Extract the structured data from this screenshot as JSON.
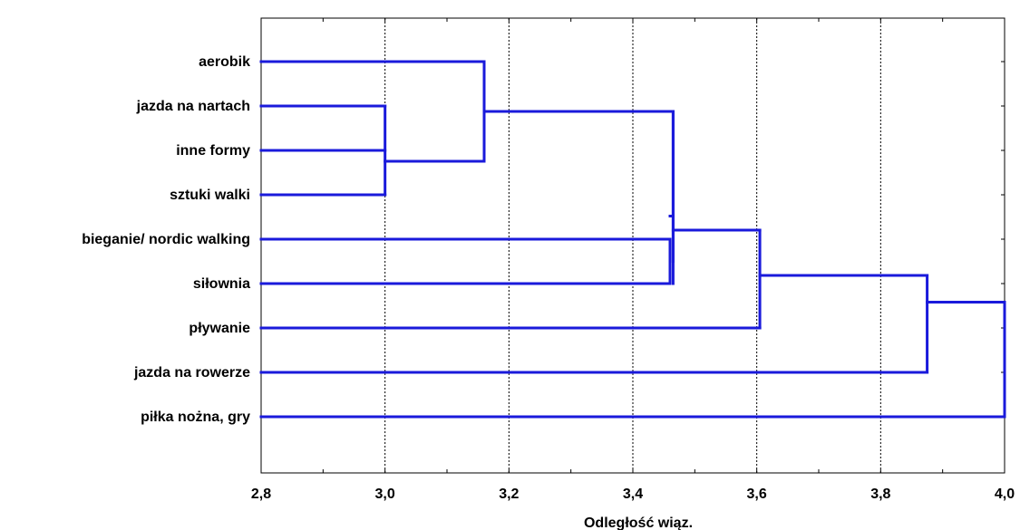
{
  "chart_data": {
    "type": "dendrogram",
    "title": "",
    "xlabel": "Odległość wiąz.",
    "ylabel": "",
    "xlim": [
      2.8,
      4.0
    ],
    "x_ticks": [
      2.8,
      3.0,
      3.2,
      3.4,
      3.6,
      3.8,
      4.0
    ],
    "x_tick_labels": [
      "2,8",
      "3,0",
      "3,2",
      "3,4",
      "3,6",
      "3,8",
      "4,0"
    ],
    "grid": "vertical-dotted",
    "line_color": "#1a1adb",
    "leaves": [
      "aerobik",
      "jazda na nartach",
      "inne formy",
      "sztuki walki",
      "bieganie/ nordic walking",
      "siłownia",
      "pływanie",
      "jazda na rowerze",
      "piłka nożna, gry"
    ],
    "merges": [
      {
        "left": "jazda na nartach",
        "right": "inne formy",
        "distance": 3.0
      },
      {
        "left": "inne formy",
        "right": "sztuki walki",
        "distance": 3.0
      },
      {
        "left": "aerobik",
        "right": "cluster(jazda na nartach..sztuki walki)",
        "distance": 3.16
      },
      {
        "left": "bieganie/ nordic walking",
        "right": "siłownia",
        "distance": 3.46
      },
      {
        "left": "cluster(aerobik..sztuki walki)",
        "right": "cluster(bieganie..siłownia)",
        "distance": 3.465
      },
      {
        "left": "cluster(aerobik..siłownia)",
        "right": "pływanie",
        "distance": 3.605
      },
      {
        "left": "cluster(aerobik..pływanie)",
        "right": "jazda na rowerze",
        "distance": 3.875
      },
      {
        "left": "cluster(aerobik..jazda na rowerze)",
        "right": "piłka nożna, gry",
        "distance": 4.0
      }
    ]
  }
}
